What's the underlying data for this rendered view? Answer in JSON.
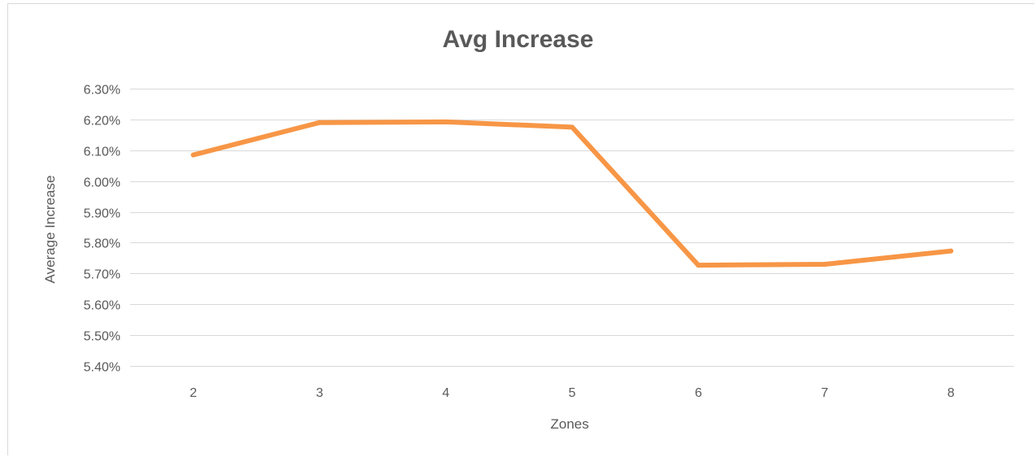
{
  "chart_data": {
    "type": "line",
    "title": "Avg Increase",
    "xlabel": "Zones",
    "ylabel": "Average Increase",
    "categories": [
      "2",
      "3",
      "4",
      "5",
      "6",
      "7",
      "8"
    ],
    "series": [
      {
        "values": [
          6.085,
          6.19,
          6.192,
          6.175,
          5.727,
          5.73,
          5.773
        ]
      }
    ],
    "value_format": "percent_2dp",
    "ylim": [
      5.4,
      6.3
    ],
    "ytick_step": 0.1,
    "yticks": [
      "5.40%",
      "5.50%",
      "5.60%",
      "5.70%",
      "5.80%",
      "5.90%",
      "6.00%",
      "6.10%",
      "6.20%",
      "6.30%"
    ],
    "grid": true,
    "legend": "none",
    "colors": {
      "line": "#f79646",
      "grid": "#d9d9d9",
      "text": "#595959"
    }
  }
}
